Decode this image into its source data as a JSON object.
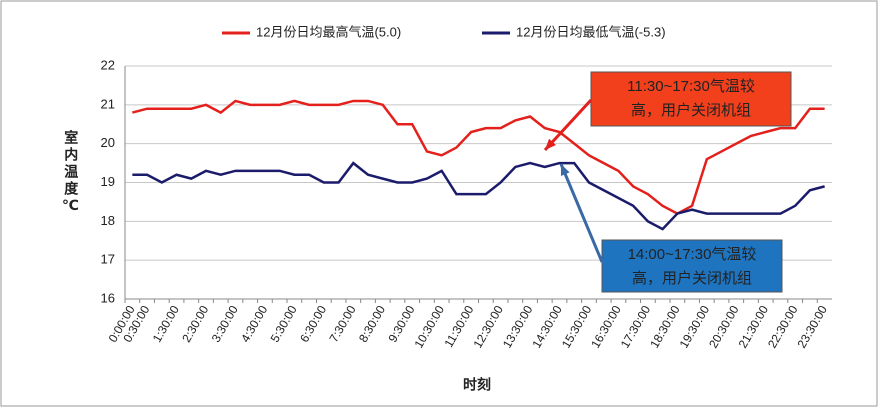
{
  "chart_data": {
    "type": "line",
    "legend_position": "top",
    "x_label": "时刻",
    "y_label": "室内温度℃",
    "categories": [
      "0:00:00",
      "0:30:00",
      null,
      "1:30:00",
      null,
      "2:30:00",
      null,
      "3:30:00",
      null,
      "4:30:00",
      null,
      "5:30:00",
      null,
      "6:30:00",
      null,
      "7:30:00",
      null,
      "8:30:00",
      null,
      "9:30:00",
      null,
      "10:30:00",
      null,
      "11:30:00",
      null,
      "12:30:00",
      null,
      "13:30:00",
      null,
      "14:30:00",
      null,
      "15:30:00",
      null,
      "16:30:00",
      null,
      "17:30:00",
      null,
      "18:30:00",
      null,
      "19:30:00",
      null,
      "20:30:00",
      null,
      "21:30:00",
      null,
      "22:30:00",
      null,
      "23:30:00"
    ],
    "series": [
      {
        "name": "12月份日均最高气温(5.0)",
        "color": "#e3201b",
        "values": [
          20.8,
          20.9,
          20.9,
          20.9,
          20.9,
          21.0,
          20.8,
          21.1,
          21.0,
          21.0,
          21.0,
          21.1,
          21.0,
          21.0,
          21.0,
          21.1,
          21.1,
          21.0,
          20.5,
          20.5,
          19.8,
          19.7,
          19.9,
          20.3,
          20.4,
          20.4,
          20.6,
          20.7,
          20.4,
          20.3,
          20.0,
          19.7,
          19.5,
          19.3,
          18.9,
          18.7,
          18.4,
          18.2,
          18.4,
          19.6,
          19.8,
          20.0,
          20.2,
          20.3,
          20.4,
          20.4,
          20.9,
          20.9
        ]
      },
      {
        "name": "12月份日均最低气温(-5.3)",
        "color": "#1b1b6b",
        "values": [
          19.2,
          19.2,
          19.0,
          19.2,
          19.1,
          19.3,
          19.2,
          19.3,
          19.3,
          19.3,
          19.3,
          19.2,
          19.2,
          19.0,
          19.0,
          19.5,
          19.2,
          19.1,
          19.0,
          19.0,
          19.1,
          19.3,
          18.7,
          18.7,
          18.7,
          19.0,
          19.4,
          19.5,
          19.4,
          19.5,
          19.5,
          19.0,
          18.8,
          18.6,
          18.4,
          18.0,
          17.8,
          18.2,
          18.3,
          18.2,
          18.2,
          18.2,
          18.2,
          18.2,
          18.2,
          18.4,
          18.8,
          18.9
        ]
      }
    ],
    "ylim": [
      16,
      22
    ],
    "yticks": [
      16,
      17,
      18,
      19,
      20,
      21,
      22
    ],
    "grid": true,
    "annotations": [
      {
        "lines": [
          "11:30~17:30气温较",
          "高，用户关闭机组"
        ],
        "color": "#f2401c"
      },
      {
        "lines": [
          "14:00~17:30气温较",
          "高，用户关闭机组"
        ],
        "color": "#1f74c0"
      }
    ]
  }
}
